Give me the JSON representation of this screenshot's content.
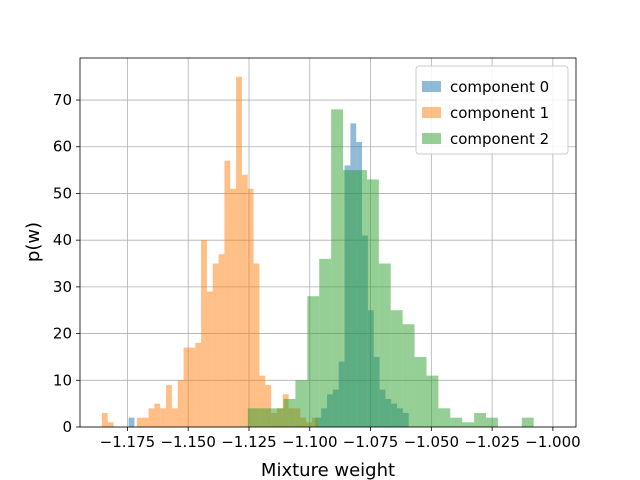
{
  "chart_data": {
    "type": "bar",
    "subtype": "overlapping-histogram",
    "title": "",
    "xlabel": "Mixture weight",
    "ylabel": "p(w)",
    "xlim": [
      -1.1945,
      -0.9905
    ],
    "ylim": [
      0,
      79
    ],
    "xticks": [
      {
        "value": -1.175,
        "label": "−1.175"
      },
      {
        "value": -1.15,
        "label": "−1.150"
      },
      {
        "value": -1.125,
        "label": "−1.125"
      },
      {
        "value": -1.1,
        "label": "−1.100"
      },
      {
        "value": -1.075,
        "label": "−1.075"
      },
      {
        "value": -1.05,
        "label": "−1.050"
      },
      {
        "value": -1.025,
        "label": "−1.025"
      },
      {
        "value": -1.0,
        "label": "−1.000"
      }
    ],
    "yticks": [
      {
        "value": 0,
        "label": "0"
      },
      {
        "value": 10,
        "label": "10"
      },
      {
        "value": 20,
        "label": "20"
      },
      {
        "value": 30,
        "label": "30"
      },
      {
        "value": 40,
        "label": "40"
      },
      {
        "value": 50,
        "label": "50"
      },
      {
        "value": 60,
        "label": "60"
      },
      {
        "value": 70,
        "label": "70"
      }
    ],
    "grid": true,
    "alpha": 0.5,
    "legend_position": "top-right",
    "series": [
      {
        "name": "component 0",
        "color": "#1f77b4",
        "bin_start": -1.1745,
        "bin_width": 0.0024,
        "values": [
          2,
          0,
          0,
          0,
          0,
          0,
          0,
          0,
          0,
          0,
          0,
          0,
          0,
          0,
          0,
          0,
          0,
          0,
          0,
          0,
          0,
          0,
          0,
          0,
          0,
          0,
          0,
          0,
          0,
          0,
          0,
          0,
          2,
          4,
          7,
          8,
          14,
          56,
          65,
          61,
          41,
          25,
          15,
          8,
          6,
          5,
          4,
          3
        ]
      },
      {
        "name": "component 1",
        "color": "#ff7f0e",
        "bin_start": -1.1855,
        "bin_width": 0.0024,
        "values": [
          3,
          1,
          0,
          0,
          0,
          0,
          2,
          2,
          4,
          5,
          4,
          9,
          4,
          10,
          17,
          17,
          18,
          40,
          29,
          35,
          37,
          57,
          51,
          75,
          54,
          51,
          35,
          11,
          9,
          3,
          4,
          7,
          4,
          4,
          2,
          1,
          2
        ]
      },
      {
        "name": "component 2",
        "color": "#2ca02c",
        "bin_start": -1.1255,
        "bin_width": 0.0049,
        "values": [
          4,
          4,
          4,
          6,
          10,
          28,
          36,
          68,
          55,
          55,
          53,
          35,
          25,
          22,
          15,
          11,
          4,
          2,
          1,
          3,
          2,
          0,
          0,
          2,
          0,
          0
        ]
      }
    ]
  }
}
